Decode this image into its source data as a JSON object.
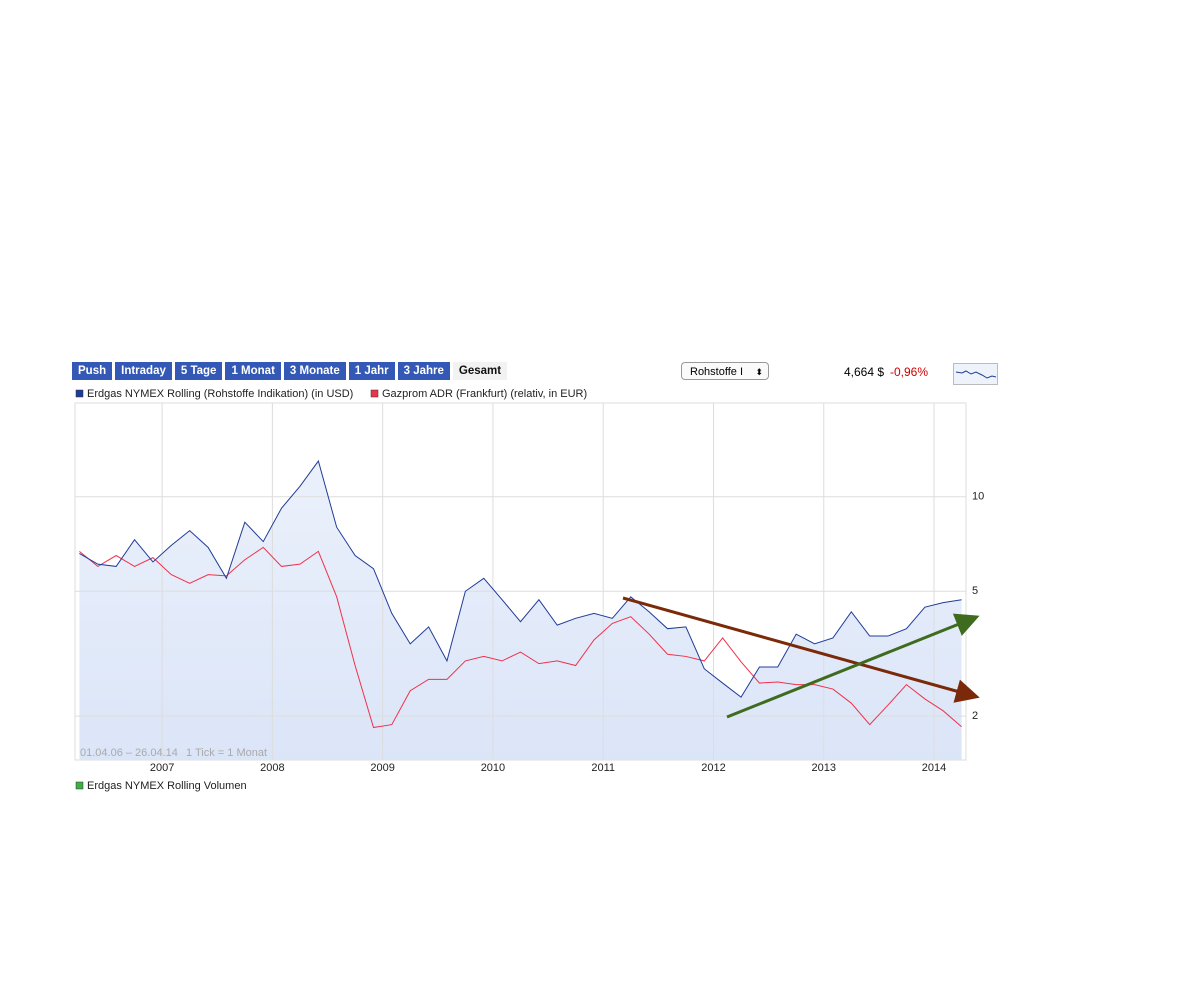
{
  "toolbar": {
    "buttons": [
      "Push",
      "Intraday",
      "5 Tage",
      "1 Monat",
      "3 Monate",
      "1 Jahr",
      "3 Jahre",
      "Gesamt"
    ],
    "selector": "Rohstoffe I",
    "price": "4,664 $",
    "change": "-0,96%"
  },
  "chart_data": {
    "type": "line",
    "log_scale": true,
    "grid": true,
    "annotations": [
      "01.04.06 – 26.04.14",
      "1 Tick = 1 Monat"
    ],
    "x": [
      2006.25,
      2006.417,
      2006.583,
      2006.75,
      2006.917,
      2007.083,
      2007.25,
      2007.417,
      2007.583,
      2007.75,
      2007.917,
      2008.083,
      2008.25,
      2008.417,
      2008.583,
      2008.75,
      2008.917,
      2009.083,
      2009.25,
      2009.417,
      2009.583,
      2009.75,
      2009.917,
      2010.083,
      2010.25,
      2010.417,
      2010.583,
      2010.75,
      2010.917,
      2011.083,
      2011.25,
      2011.417,
      2011.583,
      2011.75,
      2011.917,
      2012.083,
      2012.25,
      2012.417,
      2012.583,
      2012.75,
      2012.917,
      2013.083,
      2013.25,
      2013.417,
      2013.583,
      2013.75,
      2013.917,
      2014.083,
      2014.25
    ],
    "series": [
      {
        "name": "Erdgas NYMEX Rolling (Rohstoffe Indikation) (in USD)",
        "color": "#1f3c99",
        "fill": "#dbe5f8",
        "values": [
          6.6,
          6.1,
          6.0,
          7.3,
          6.2,
          7.0,
          7.8,
          6.9,
          5.5,
          8.3,
          7.2,
          9.2,
          10.8,
          13.0,
          8.0,
          6.5,
          5.9,
          4.25,
          3.4,
          3.85,
          3.0,
          5.0,
          5.5,
          4.7,
          4.0,
          4.7,
          3.9,
          4.1,
          4.25,
          4.1,
          4.8,
          4.3,
          3.8,
          3.85,
          2.83,
          2.55,
          2.3,
          2.87,
          2.87,
          3.65,
          3.4,
          3.55,
          4.3,
          3.6,
          3.6,
          3.8,
          4.45,
          4.6,
          4.7
        ]
      },
      {
        "name": "Gazprom ADR (Frankfurt) (relativ, in EUR)",
        "color": "#f0324a",
        "values": [
          6.7,
          6.0,
          6.5,
          6.0,
          6.4,
          5.65,
          5.3,
          5.65,
          5.6,
          6.3,
          6.9,
          6.0,
          6.1,
          6.7,
          4.8,
          2.9,
          1.84,
          1.88,
          2.41,
          2.62,
          2.62,
          3.0,
          3.1,
          3.0,
          3.2,
          2.94,
          3.0,
          2.9,
          3.5,
          3.95,
          4.15,
          3.65,
          3.15,
          3.1,
          3.0,
          3.55,
          2.98,
          2.55,
          2.57,
          2.52,
          2.52,
          2.44,
          2.2,
          1.88,
          2.17,
          2.52,
          2.27,
          2.08,
          1.85
        ]
      }
    ],
    "xlim": [
      2006.21,
      2014.29
    ],
    "xticks": [
      2007,
      2008,
      2009,
      2010,
      2011,
      2012,
      2013,
      2014
    ],
    "ylim": [
      1.45,
      19.9
    ],
    "yticks": [
      2,
      5,
      10
    ]
  },
  "volume_legend": {
    "name": "Erdgas NYMEX Rolling Volumen",
    "color": "#3cb043"
  }
}
